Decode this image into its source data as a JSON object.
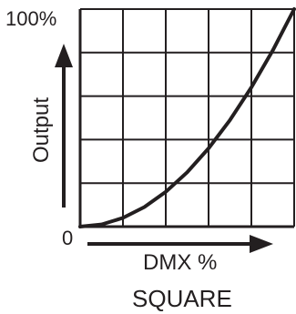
{
  "chart_data": {
    "type": "line",
    "title": "SQUARE",
    "xlabel": "DMX %",
    "ylabel": "Output",
    "y_tick_labels": {
      "max": "100%",
      "min": "0"
    },
    "xlim": [
      0,
      100
    ],
    "ylim": [
      0,
      100
    ],
    "grid": true,
    "grid_divisions": {
      "x": 5,
      "y": 5
    },
    "line_color": "#231f20",
    "grid_color": "#231f20",
    "series": [
      {
        "x": [
          0,
          10,
          20,
          30,
          40,
          50,
          60,
          70,
          80,
          90,
          100
        ],
        "y": [
          0,
          1,
          4,
          9,
          16,
          25,
          36,
          49,
          64,
          81,
          100
        ]
      }
    ]
  }
}
